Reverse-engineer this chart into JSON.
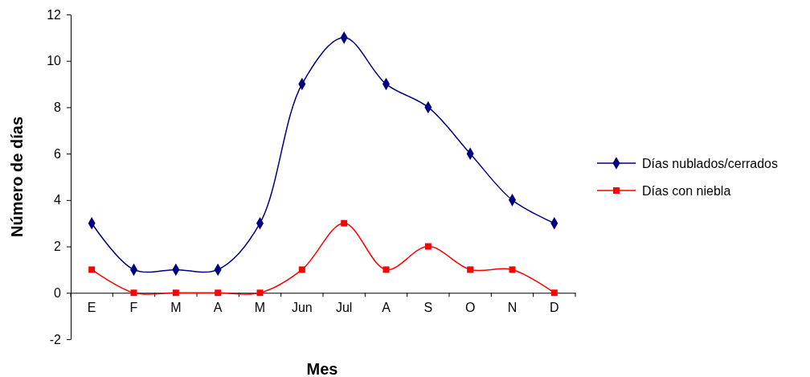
{
  "chart_data": {
    "type": "line",
    "xlabel": "Mes",
    "ylabel": "Número de días",
    "categories": [
      "E",
      "F",
      "M",
      "A",
      "M",
      "Jun",
      "Jul",
      "A",
      "S",
      "O",
      "N",
      "D"
    ],
    "series": [
      {
        "name": "Días nublados/cerrados",
        "color": "#000080",
        "marker": "diamond",
        "values": [
          3,
          1,
          1,
          1,
          3,
          9,
          11,
          9,
          8,
          6,
          4,
          3
        ]
      },
      {
        "name": "Días con niebla",
        "color": "#ff0000",
        "marker": "square",
        "values": [
          1,
          0,
          0,
          0,
          0,
          1,
          3,
          1,
          2,
          1,
          1,
          0
        ]
      }
    ],
    "ylim": [
      -2,
      12
    ],
    "yticks": [
      -2,
      0,
      2,
      4,
      6,
      8,
      10,
      12
    ],
    "grid": false,
    "legend": "right"
  }
}
